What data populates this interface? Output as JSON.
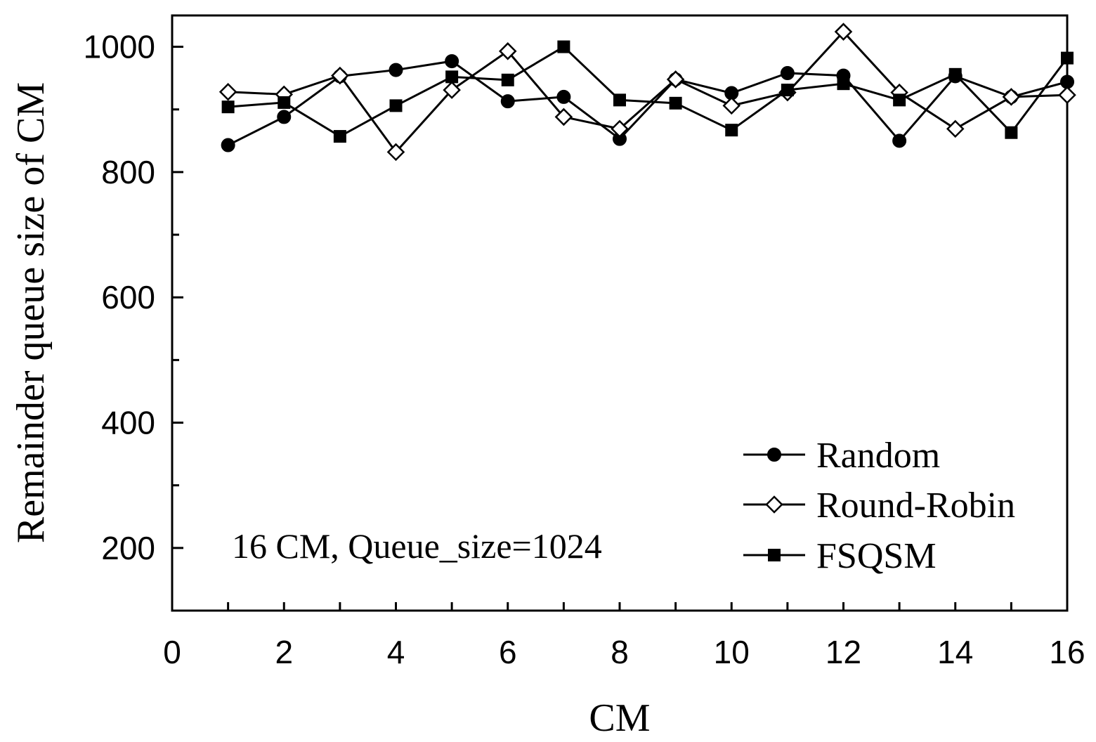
{
  "chart_data": {
    "type": "line",
    "title": "",
    "xlabel": "CM",
    "ylabel": "Remainder queue size of CM",
    "xlim": [
      0,
      16
    ],
    "ylim": [
      100,
      1050
    ],
    "xticks": [
      0,
      2,
      4,
      6,
      8,
      10,
      12,
      14,
      16
    ],
    "yticks": [
      200,
      400,
      600,
      800,
      1000
    ],
    "x": [
      1,
      2,
      3,
      4,
      5,
      6,
      7,
      8,
      9,
      10,
      11,
      12,
      13,
      14,
      15,
      16
    ],
    "annotation": "16 CM, Queue_size=1024",
    "legend_position": "bottom-right",
    "grid": false,
    "series": [
      {
        "name": "Random",
        "marker": "filled-circle",
        "values": [
          843,
          888,
          953,
          963,
          977,
          913,
          920,
          853,
          948,
          926,
          958,
          954,
          850,
          953,
          920,
          944
        ]
      },
      {
        "name": "Round-Robin",
        "marker": "open-diamond",
        "values": [
          928,
          924,
          954,
          832,
          931,
          993,
          888,
          869,
          948,
          906,
          927,
          1024,
          927,
          869,
          920,
          923
        ]
      },
      {
        "name": "FSQSM",
        "marker": "filled-square",
        "values": [
          904,
          911,
          857,
          906,
          952,
          947,
          1000,
          915,
          910,
          867,
          931,
          941,
          915,
          956,
          863,
          982
        ]
      }
    ]
  }
}
